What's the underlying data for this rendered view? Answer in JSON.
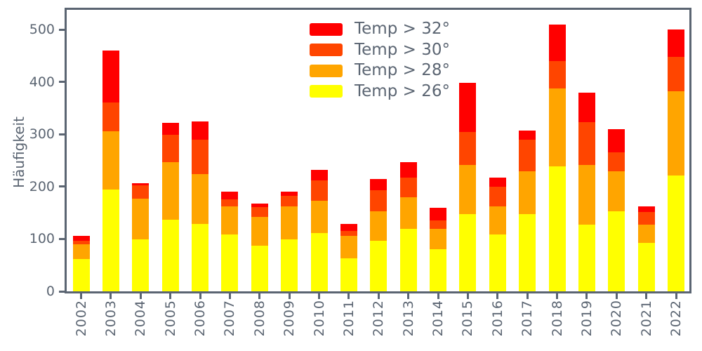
{
  "chart_data": {
    "type": "bar",
    "stacked": true,
    "title": "",
    "xlabel": "",
    "ylabel": "Häufigkeit",
    "categories": [
      "2002",
      "2003",
      "2004",
      "2005",
      "2006",
      "2007",
      "2008",
      "2009",
      "2010",
      "2011",
      "2012",
      "2013",
      "2014",
      "2015",
      "2016",
      "2017",
      "2018",
      "2019",
      "2020",
      "2021",
      "2022"
    ],
    "series": [
      {
        "name": "Temp > 26°",
        "color": "#FFFF00",
        "values": [
          62,
          195,
          99,
          137,
          129,
          109,
          87,
          99,
          111,
          63,
          97,
          119,
          81,
          147,
          108,
          148,
          238,
          127,
          153,
          93,
          221
        ]
      },
      {
        "name": "Temp > 28°",
        "color": "#FFA500",
        "values": [
          28,
          110,
          78,
          110,
          95,
          53,
          55,
          63,
          62,
          43,
          56,
          60,
          38,
          94,
          54,
          81,
          149,
          114,
          76,
          34,
          161
        ]
      },
      {
        "name": "Temp > 30°",
        "color": "#FF4500",
        "values": [
          7,
          56,
          26,
          52,
          66,
          14,
          19,
          20,
          39,
          10,
          40,
          38,
          16,
          64,
          38,
          61,
          53,
          82,
          36,
          25,
          66
        ]
      },
      {
        "name": "Temp > 32°",
        "color": "#FF0000",
        "values": [
          9,
          99,
          3,
          23,
          35,
          14,
          7,
          9,
          20,
          13,
          21,
          30,
          25,
          93,
          17,
          17,
          70,
          57,
          45,
          10,
          52
        ]
      }
    ],
    "totals": [
      106,
      460,
      206,
      322,
      325,
      190,
      168,
      191,
      232,
      129,
      214,
      247,
      160,
      398,
      217,
      307,
      510,
      380,
      310,
      162,
      500
    ],
    "legend": {
      "position": "upper center",
      "entries": [
        "Temp > 32°",
        "Temp > 30°",
        "Temp > 28°",
        "Temp > 26°"
      ]
    },
    "yticks": [
      0,
      100,
      200,
      300,
      400,
      500
    ],
    "ylim": [
      0,
      538
    ],
    "grid": false,
    "axis_color": "#5b6572",
    "background_color": "#ffffff"
  }
}
